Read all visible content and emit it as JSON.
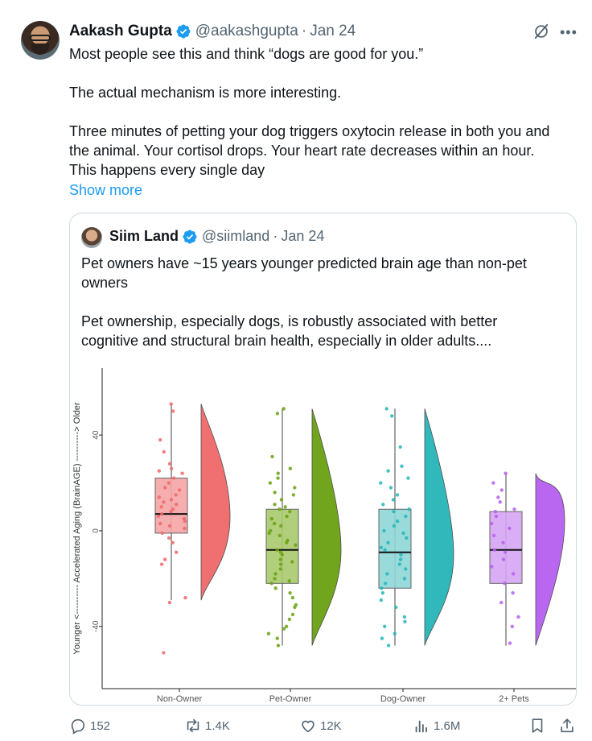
{
  "tweet": {
    "author": {
      "name": "Aakash Gupta",
      "handle": "@aakashgupta",
      "separator": "·",
      "date": "Jan 24"
    },
    "paragraphs": [
      "Most people see this and think “dogs are good for you.”",
      "The actual mechanism is more interesting.",
      "Three minutes of petting your dog triggers oxytocin release in both you and\nthe animal. Your cortisol drops. Your heart rate decreases within an hour.\nThis happens every single day"
    ],
    "show_more": "Show more",
    "icons": {
      "verified": "verified-badge-icon",
      "grok": "grok-icon",
      "more": "more-icon"
    },
    "colors": {
      "link": "#1d9bf0",
      "verified": "#1d9bf0",
      "muted": "#536471"
    }
  },
  "quote": {
    "author": {
      "name": "Siim Land",
      "handle": "@siimland",
      "separator": "·",
      "date": "Jan 24"
    },
    "paragraphs": [
      "Pet owners have ~15 years younger predicted brain age than non-pet\nowners",
      "Pet ownership, especially dogs, is robustly associated with better\ncognitive and structural brain health, especially in older adults...."
    ]
  },
  "chart_data": {
    "type": "raincloud",
    "ylabel": "Younger <---------- Accelerated Aging (BrainAGE) ----------> Older",
    "yticks": [
      40,
      0,
      -40
    ],
    "ylim": [
      -66,
      68
    ],
    "categories": [
      "Non-Owner",
      "Pet-Owner",
      "Dog-Owner",
      "2+ Pets"
    ],
    "colors": [
      "#f0696b",
      "#6aa112",
      "#27b5b8",
      "#b65ff0"
    ],
    "box_fills": [
      "#f6a5a6",
      "#a9c96c",
      "#8ed6d8",
      "#d7a6f5"
    ],
    "series": [
      {
        "name": "Non-Owner",
        "median": 7,
        "q1": -1,
        "q3": 22,
        "whisker_low": -29,
        "whisker_high": 53,
        "density_peak": 6,
        "points": [
          53,
          50,
          38,
          33,
          28,
          26,
          25,
          24,
          22,
          20,
          18,
          17,
          15,
          14,
          13,
          12,
          11,
          10,
          9,
          8,
          7,
          6,
          5,
          4,
          3,
          2,
          1,
          -1,
          -3,
          -5,
          -9,
          -12,
          -14,
          -28,
          -30,
          -51
        ]
      },
      {
        "name": "Pet-Owner",
        "median": -8,
        "q1": -22,
        "q3": 9,
        "whisker_low": -48,
        "whisker_high": 51,
        "density_peak": -8,
        "points": [
          51,
          49,
          31,
          26,
          24,
          22,
          20,
          18,
          16,
          15,
          13,
          11,
          10,
          9,
          8,
          6,
          5,
          3,
          2,
          0,
          -1,
          -2,
          -4,
          -5,
          -6,
          -8,
          -9,
          -10,
          -12,
          -13,
          -14,
          -16,
          -18,
          -20,
          -21,
          -22,
          -24,
          -26,
          -28,
          -31,
          -32,
          -35,
          -37,
          -40,
          -41,
          -43,
          -45,
          -48
        ]
      },
      {
        "name": "Dog-Owner",
        "median": -9,
        "q1": -24,
        "q3": 9,
        "whisker_low": -48,
        "whisker_high": 51,
        "density_peak": -10,
        "points": [
          51,
          48,
          35,
          27,
          25,
          22,
          20,
          18,
          15,
          13,
          11,
          9,
          8,
          6,
          4,
          2,
          0,
          -1,
          -3,
          -5,
          -7,
          -8,
          -10,
          -12,
          -14,
          -16,
          -18,
          -20,
          -22,
          -24,
          -26,
          -29,
          -32,
          -36,
          -38,
          -40,
          -43,
          -45,
          -48
        ]
      },
      {
        "name": "2+ Pets",
        "median": -8,
        "q1": -22,
        "q3": 8,
        "whisker_low": -48,
        "whisker_high": 24,
        "density_peak": 4,
        "points": [
          24,
          20,
          17,
          14,
          12,
          9,
          8,
          6,
          3,
          1,
          -2,
          -5,
          -8,
          -9,
          -12,
          -15,
          -18,
          -22,
          -26,
          -30,
          -36,
          -40,
          -47
        ]
      }
    ]
  },
  "actions": {
    "reply": {
      "icon": "reply-icon",
      "count": "152"
    },
    "repost": {
      "icon": "repost-icon",
      "count": "1.4K"
    },
    "like": {
      "icon": "heart-icon",
      "count": "12K"
    },
    "views": {
      "icon": "views-icon",
      "count": "1.6M"
    },
    "bookmark": {
      "icon": "bookmark-icon"
    },
    "share": {
      "icon": "share-icon"
    }
  }
}
